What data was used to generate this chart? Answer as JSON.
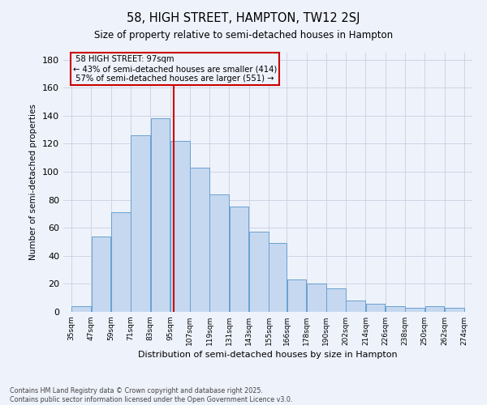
{
  "title": "58, HIGH STREET, HAMPTON, TW12 2SJ",
  "subtitle": "Size of property relative to semi-detached houses in Hampton",
  "xlabel": "Distribution of semi-detached houses by size in Hampton",
  "ylabel": "Number of semi-detached properties",
  "property_label": "58 HIGH STREET: 97sqm",
  "pct_smaller": 43,
  "count_smaller": 414,
  "pct_larger": 57,
  "count_larger": 551,
  "annotation_type": "semi-detached",
  "footer1": "Contains HM Land Registry data © Crown copyright and database right 2025.",
  "footer2": "Contains public sector information licensed under the Open Government Licence v3.0.",
  "bin_edges": [
    35,
    47,
    59,
    71,
    83,
    95,
    107,
    119,
    131,
    143,
    155,
    166,
    178,
    190,
    202,
    214,
    226,
    238,
    250,
    262,
    274
  ],
  "bar_heights": [
    4,
    54,
    71,
    126,
    138,
    122,
    103,
    84,
    75,
    57,
    49,
    23,
    20,
    17,
    8,
    6,
    4,
    3,
    4,
    3
  ],
  "bar_color": "#c5d8f0",
  "bar_edge_color": "#6aa0d0",
  "vline_color": "#cc0000",
  "vline_x": 97,
  "bg_color": "#eef2fb",
  "annotation_box_color": "#cc0000",
  "ylim": [
    0,
    185
  ],
  "yticks": [
    0,
    20,
    40,
    60,
    80,
    100,
    120,
    140,
    160,
    180
  ]
}
